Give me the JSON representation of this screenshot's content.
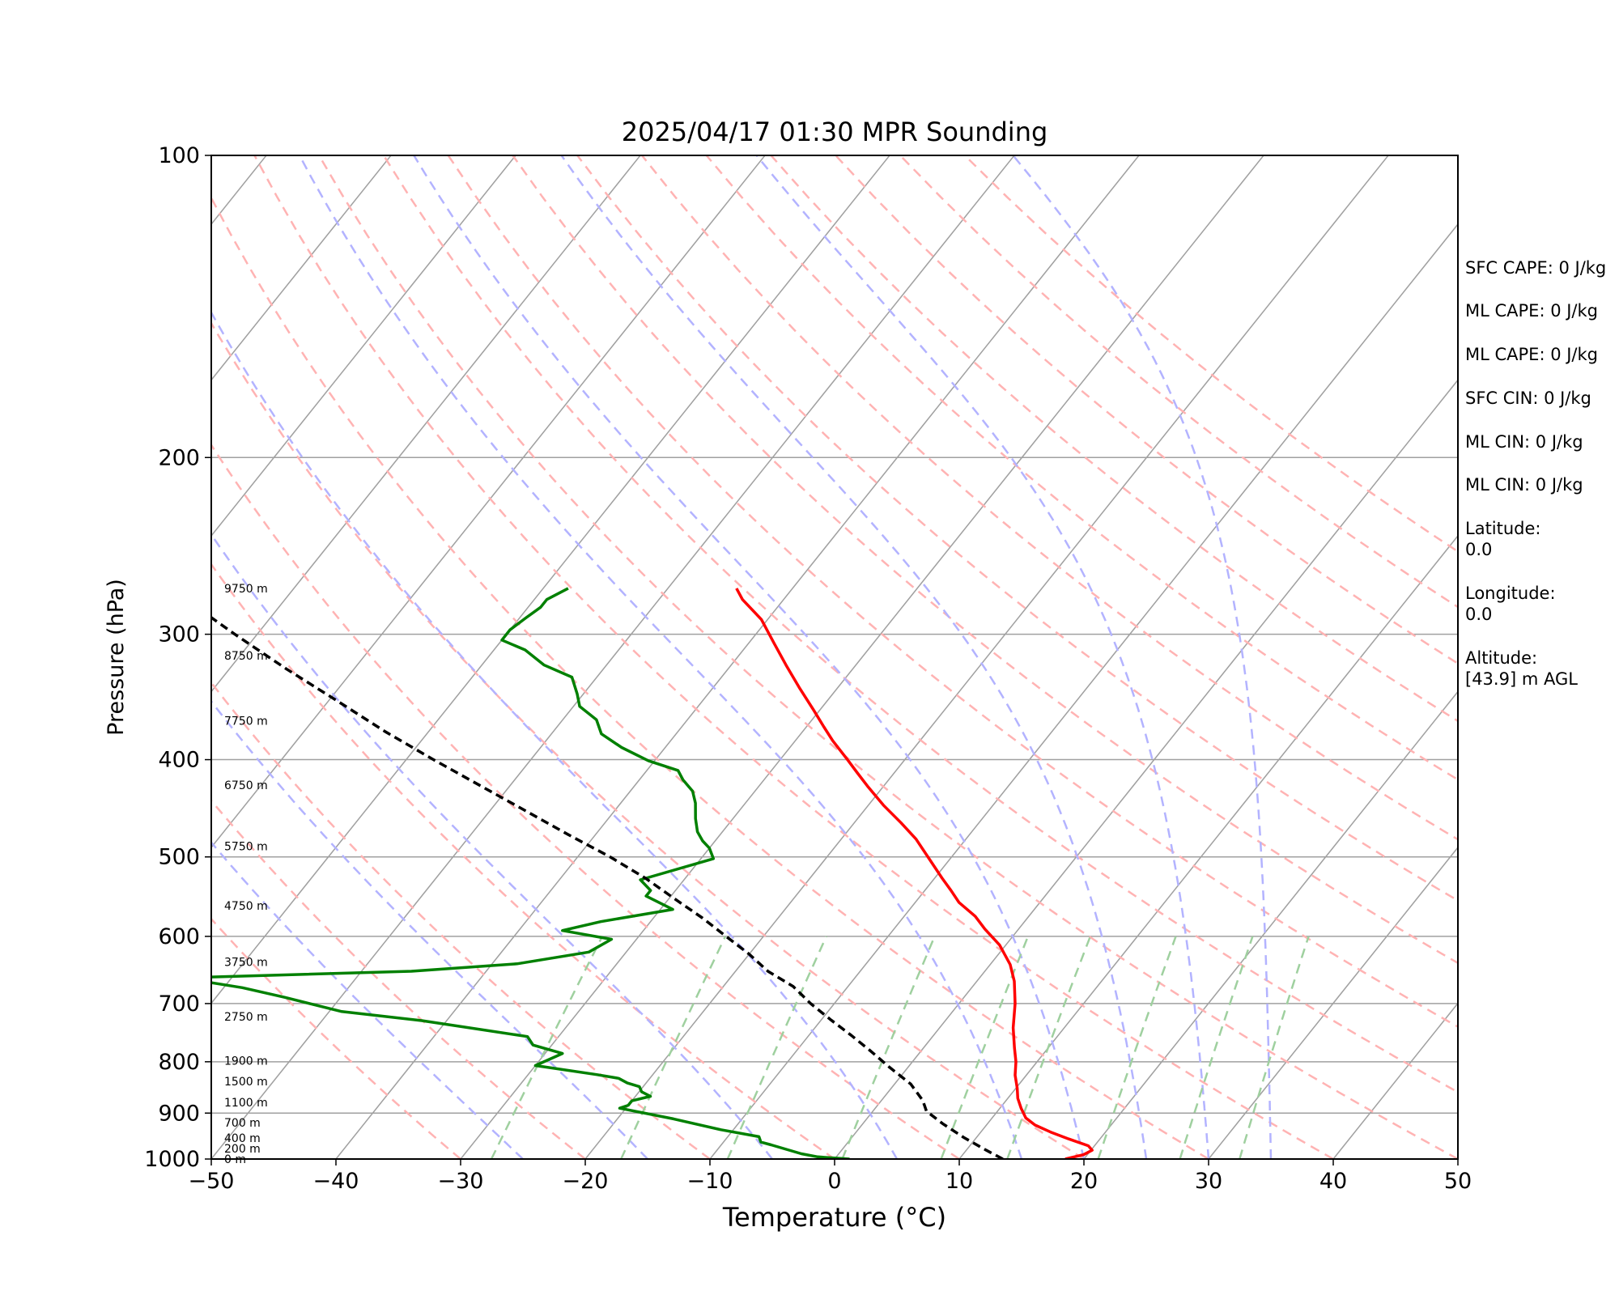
{
  "chart_data": {
    "type": "line",
    "title": "2025/04/17 01:30 MPR Sounding",
    "xlabel": "Temperature (°C)",
    "ylabel": "Pressure (hPa)",
    "xlim": [
      -50,
      50
    ],
    "ylim": [
      1000,
      100
    ],
    "y_scale": "log",
    "skew": "skew-T",
    "grid": true,
    "x_ticks": [
      -50,
      -40,
      -30,
      -20,
      -10,
      0,
      10,
      20,
      30,
      40,
      50
    ],
    "y_ticks": [
      100,
      200,
      300,
      400,
      500,
      600,
      700,
      800,
      900,
      1000
    ],
    "height_labels": [
      {
        "label": "0 m",
        "p": 1000
      },
      {
        "label": "200 m",
        "p": 976
      },
      {
        "label": "400 m",
        "p": 953
      },
      {
        "label": "700 m",
        "p": 920
      },
      {
        "label": "1100 m",
        "p": 878
      },
      {
        "label": "1500 m",
        "p": 837
      },
      {
        "label": "1900 m",
        "p": 798
      },
      {
        "label": "2750 m",
        "p": 721
      },
      {
        "label": "3750 m",
        "p": 636
      },
      {
        "label": "4750 m",
        "p": 559
      },
      {
        "label": "5750 m",
        "p": 488
      },
      {
        "label": "6750 m",
        "p": 424
      },
      {
        "label": "7750 m",
        "p": 366
      },
      {
        "label": "8750 m",
        "p": 315
      },
      {
        "label": "9750 m",
        "p": 270
      }
    ],
    "series": [
      {
        "role": "temperature",
        "color": "#ff0000",
        "points": [
          [
            18.5,
            1000
          ],
          [
            19.7,
            990
          ],
          [
            20.1,
            980
          ],
          [
            19.5,
            970
          ],
          [
            17.5,
            955
          ],
          [
            15.6,
            940
          ],
          [
            13.9,
            925
          ],
          [
            12.7,
            910
          ],
          [
            11.7,
            890
          ],
          [
            10.8,
            870
          ],
          [
            10.1,
            850
          ],
          [
            9.1,
            825
          ],
          [
            8.3,
            800
          ],
          [
            7.3,
            775
          ],
          [
            5.9,
            740
          ],
          [
            4.5,
            700
          ],
          [
            3.0,
            665
          ],
          [
            1.6,
            640
          ],
          [
            -0.5,
            612
          ],
          [
            -2.7,
            590
          ],
          [
            -4.3,
            573
          ],
          [
            -6.5,
            555
          ],
          [
            -7.9,
            540
          ],
          [
            -9.4,
            525
          ],
          [
            -14.0,
            480
          ],
          [
            -16.3,
            462
          ],
          [
            -18.8,
            444
          ],
          [
            -21.3,
            425
          ],
          [
            -23.0,
            412
          ],
          [
            -24.6,
            400
          ],
          [
            -27.0,
            383
          ],
          [
            -28.6,
            371
          ],
          [
            -30.5,
            357
          ],
          [
            -33.1,
            339
          ],
          [
            -35.6,
            322
          ],
          [
            -38.0,
            306
          ],
          [
            -40.5,
            290
          ],
          [
            -43.3,
            277
          ],
          [
            -44.5,
            270
          ]
        ]
      },
      {
        "role": "dewpoint",
        "color": "#008000",
        "points": [
          [
            1.2,
            1000
          ],
          [
            -1.5,
            995
          ],
          [
            -3.0,
            988
          ],
          [
            -4.5,
            978
          ],
          [
            -6.0,
            968
          ],
          [
            -7.0,
            962
          ],
          [
            -7.5,
            950
          ],
          [
            -11.0,
            935
          ],
          [
            -15.5,
            912
          ],
          [
            -20.5,
            890
          ],
          [
            -20.0,
            884
          ],
          [
            -20.0,
            875
          ],
          [
            -18.8,
            866
          ],
          [
            -19.8,
            857
          ],
          [
            -20.3,
            847
          ],
          [
            -21.5,
            840
          ],
          [
            -22.5,
            831
          ],
          [
            -24.5,
            824
          ],
          [
            -30.0,
            807
          ],
          [
            -28.6,
            785
          ],
          [
            -31.5,
            770
          ],
          [
            -32.5,
            755
          ],
          [
            -42.0,
            728
          ],
          [
            -49.0,
            713
          ],
          [
            -54.5,
            690
          ],
          [
            -58.5,
            675
          ],
          [
            -64.0,
            660
          ],
          [
            -46.0,
            650
          ],
          [
            -38.0,
            639
          ],
          [
            -33.0,
            622
          ],
          [
            -32.0,
            604
          ],
          [
            -36.5,
            592
          ],
          [
            -34.0,
            580
          ],
          [
            -29.0,
            564
          ],
          [
            -32.0,
            547
          ],
          [
            -32.0,
            540
          ],
          [
            -33.5,
            527
          ],
          [
            -29.0,
            502
          ],
          [
            -30.0,
            490
          ],
          [
            -31.0,
            482
          ],
          [
            -32.0,
            472
          ],
          [
            -33.0,
            458
          ],
          [
            -34.0,
            442
          ],
          [
            -35.0,
            430
          ],
          [
            -36.5,
            419
          ],
          [
            -37.5,
            410
          ],
          [
            -40.5,
            401
          ],
          [
            -43.5,
            389
          ],
          [
            -46.0,
            377
          ],
          [
            -47.3,
            365
          ],
          [
            -49.5,
            354
          ],
          [
            -50.5,
            344
          ],
          [
            -52.0,
            331
          ],
          [
            -55.0,
            322
          ],
          [
            -57.5,
            311
          ],
          [
            -60.0,
            304
          ],
          [
            -60.0,
            297
          ],
          [
            -59.5,
            289
          ],
          [
            -59.0,
            282
          ],
          [
            -59.0,
            277
          ],
          [
            -58.0,
            270
          ]
        ]
      },
      {
        "role": "parcel",
        "color": "#000000",
        "dashed": true,
        "points": [
          [
            13.5,
            1000
          ],
          [
            11.6,
            980
          ],
          [
            9.0,
            952
          ],
          [
            6.4,
            922
          ],
          [
            4.3,
            896
          ],
          [
            3.8,
            885
          ],
          [
            3.3,
            874
          ],
          [
            1.3,
            842
          ],
          [
            -1.5,
            810
          ],
          [
            -4.0,
            781
          ],
          [
            -6.6,
            753
          ],
          [
            -9.2,
            727
          ],
          [
            -11.9,
            700
          ],
          [
            -14.4,
            673
          ],
          [
            -17.4,
            650
          ],
          [
            -20.0,
            625
          ],
          [
            -23.0,
            600
          ],
          [
            -26.1,
            575
          ],
          [
            -29.6,
            550
          ],
          [
            -33.2,
            525
          ],
          [
            -37.4,
            500
          ],
          [
            -42.2,
            475
          ],
          [
            -47.1,
            450
          ],
          [
            -52.3,
            425
          ],
          [
            -57.8,
            400
          ],
          [
            -63.5,
            375
          ],
          [
            -69.2,
            350
          ],
          [
            -75.4,
            325
          ],
          [
            -81.8,
            300
          ],
          [
            -88.5,
            275
          ],
          [
            -89.5,
            270
          ]
        ]
      }
    ],
    "dry_adiabat_theta_c": [
      -30,
      -20,
      -10,
      0,
      10,
      20,
      30,
      40,
      50,
      60,
      70,
      80,
      90,
      100,
      110,
      120,
      130,
      140,
      150
    ],
    "moist_adiabat_start_c": [
      -25,
      -15,
      -5,
      5,
      15,
      20,
      25,
      30,
      35
    ],
    "mixing_ratio_gkg": [
      0.4,
      1,
      2,
      4,
      7,
      10,
      16,
      24,
      32
    ],
    "colors": {
      "isotherm": "#a0a0a0",
      "isobar": "#a0a0a0",
      "dry_adiabat": "#ffb3b3",
      "moist_adiabat": "#b3b3ff",
      "mixing_ratio": "#9fd09f"
    }
  },
  "info": {
    "sfc_cape": "SFC CAPE: 0 J/kg",
    "ml_cape_1": "ML CAPE: 0 J/kg",
    "ml_cape_2": "ML CAPE: 0 J/kg",
    "sfc_cin": "SFC CIN: 0 J/kg",
    "ml_cin_1": "ML CIN: 0 J/kg",
    "ml_cin_2": "ML CIN: 0 J/kg",
    "latitude_label": "Latitude:",
    "latitude_value": "0.0",
    "longitude_label": "Longitude:",
    "longitude_value": "0.0",
    "altitude_label": "Altitude:",
    "altitude_value": "[43.9] m AGL"
  }
}
